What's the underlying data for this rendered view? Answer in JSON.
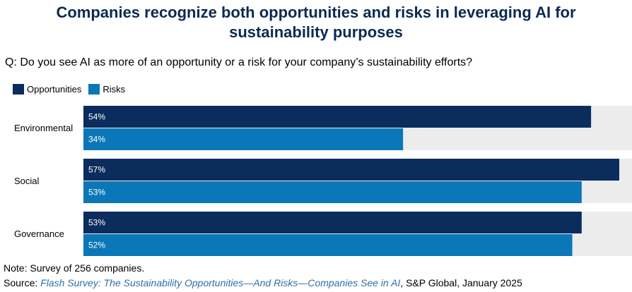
{
  "title_line1": "Companies recognize both opportunities and risks in leveraging AI for",
  "title_line2": "sustainability purposes",
  "question": "Q: Do you see AI as more of an opportunity or a risk for your company’s sustainability efforts?",
  "note": "Note: Survey of 256 companies.",
  "source": {
    "prefix": "Source: ",
    "link_text": "Flash Survey: The Sustainability Opportunities—And Risks—Companies See in AI",
    "suffix": ", S&P Global, January 2025"
  },
  "colors": {
    "opportunities": "#0a2d5e",
    "risks": "#0a77b8",
    "background_band": "#ececec",
    "title": "#0b2a4f"
  },
  "chart_data": {
    "type": "bar",
    "orientation": "horizontal",
    "categories": [
      "Environmental",
      "Social",
      "Governance"
    ],
    "series": [
      {
        "name": "Opportunities",
        "values": [
          54,
          57,
          53
        ],
        "labels": [
          "54%",
          "57%",
          "53%"
        ]
      },
      {
        "name": "Risks",
        "values": [
          34,
          53,
          52
        ],
        "labels": [
          "34%",
          "53%",
          "52%"
        ]
      }
    ],
    "xlim": [
      0,
      57
    ],
    "grid": false,
    "legend_position": "top-left"
  }
}
